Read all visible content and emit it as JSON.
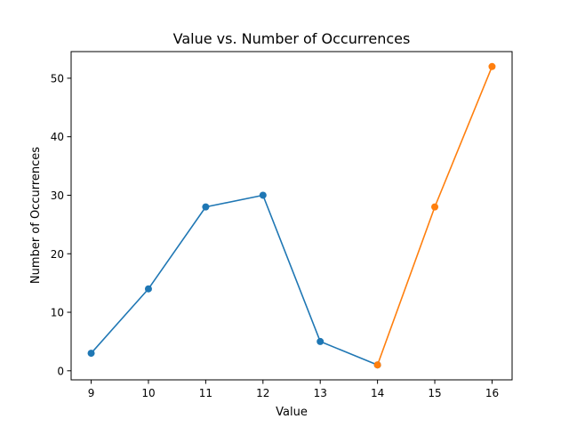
{
  "chart_data": {
    "type": "line",
    "title": "Value vs. Number of Occurrences",
    "xlabel": "Value",
    "ylabel": "Number of Occurrences",
    "xlim": [
      8.65,
      16.35
    ],
    "ylim": [
      -1.55,
      54.55
    ],
    "xticks": [
      9,
      10,
      11,
      12,
      13,
      14,
      15,
      16
    ],
    "yticks": [
      0,
      10,
      20,
      30,
      40,
      50
    ],
    "grid": false,
    "legend": "none",
    "series": [
      {
        "color": "#1f77b4",
        "marker": "circle",
        "x": [
          9,
          10,
          11,
          12,
          13,
          14
        ],
        "y": [
          3,
          14,
          28,
          30,
          5,
          1
        ]
      },
      {
        "color": "#ff7f0e",
        "marker": "circle",
        "x": [
          14,
          15,
          16
        ],
        "y": [
          1,
          28,
          52
        ]
      }
    ]
  }
}
